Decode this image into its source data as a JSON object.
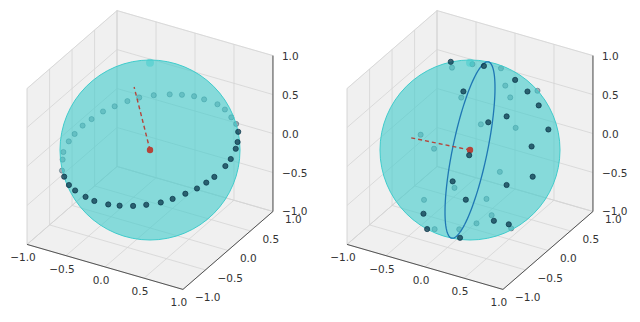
{
  "chart_data": [
    {
      "type": "scatter3d",
      "xlim": [
        -1,
        1
      ],
      "ylim": [
        -1,
        1
      ],
      "zlim": [
        -1,
        1
      ],
      "xticks": [
        {
          "value": -1,
          "label": "−1.0"
        },
        {
          "value": -0.5,
          "label": "−0.5"
        },
        {
          "value": 0,
          "label": "0.0"
        },
        {
          "value": 0.5,
          "label": "0.5"
        },
        {
          "value": 1,
          "label": "1.0"
        }
      ],
      "yticks": [
        {
          "value": -1,
          "label": "−1.0"
        },
        {
          "value": -0.5,
          "label": "−0.5"
        },
        {
          "value": 0,
          "label": "0.0"
        },
        {
          "value": 0.5,
          "label": "0.5"
        },
        {
          "value": 1,
          "label": "1.0"
        }
      ],
      "zticks": [
        {
          "value": -1,
          "label": "−1.0"
        },
        {
          "value": -0.5,
          "label": "−0.5"
        },
        {
          "value": 0,
          "label": "0.0"
        },
        {
          "value": 0.5,
          "label": "0.5"
        },
        {
          "value": 1,
          "label": "1.0"
        }
      ],
      "grid": true,
      "sphere": {
        "radius": 1,
        "color": "#40cccc"
      },
      "points": {
        "color": "#0d3b4f",
        "marker": "circle",
        "x": [
          0.88,
          0.93,
          0.97,
          0.99,
          0.99,
          0.95,
          0.91,
          0.82,
          0.73,
          0.61,
          0.47,
          0.34,
          0.14,
          0.0,
          -0.15,
          -0.29,
          -0.46,
          -0.6,
          -0.7,
          -0.8,
          -0.88,
          -0.94,
          -0.98,
          -0.99,
          -0.99,
          -0.95,
          -0.89,
          -0.8,
          -0.72,
          -0.59,
          -0.47,
          -0.29,
          -0.16,
          0.03,
          0.17,
          0.32,
          0.46,
          0.6,
          0.7,
          0.8
        ],
        "y": [
          -0.48,
          -0.36,
          -0.25,
          -0.04,
          0.08,
          0.26,
          0.37,
          0.54,
          0.65,
          0.75,
          0.85,
          0.91,
          0.96,
          0.98,
          0.97,
          0.94,
          0.88,
          0.8,
          0.71,
          0.6,
          0.48,
          0.33,
          0.2,
          0.04,
          -0.09,
          -0.28,
          -0.4,
          -0.57,
          -0.66,
          -0.78,
          -0.85,
          -0.93,
          -0.96,
          -0.98,
          -0.97,
          -0.93,
          -0.88,
          -0.8,
          -0.71,
          -0.6
        ],
        "z": [
          0,
          0.03,
          0.06,
          0.1,
          0.13,
          0.16,
          0.18,
          0.2,
          0.22,
          0.22,
          0.23,
          0.23,
          0.21,
          0.2,
          0.18,
          0.16,
          0.13,
          0.1,
          0.07,
          0.03,
          0,
          -0.04,
          -0.07,
          -0.1,
          -0.13,
          -0.16,
          -0.18,
          -0.21,
          -0.22,
          -0.23,
          -0.23,
          -0.22,
          -0.22,
          -0.2,
          -0.18,
          -0.16,
          -0.13,
          -0.1,
          -0.07,
          -0.03
        ]
      },
      "vector": {
        "color": "#b5443a",
        "line_style": "dashed",
        "marker": "circle",
        "x": [
          0,
          -0.1
        ],
        "y": [
          0,
          -0.18
        ],
        "z": [
          0,
          0.87
        ]
      }
    },
    {
      "type": "scatter3d",
      "xlim": [
        -1,
        1
      ],
      "ylim": [
        -1,
        1
      ],
      "zlim": [
        -1,
        1
      ],
      "xticks": [
        {
          "value": -1,
          "label": "−1.0"
        },
        {
          "value": -0.5,
          "label": "−0.5"
        },
        {
          "value": 0,
          "label": "0.0"
        },
        {
          "value": 0.5,
          "label": "0.5"
        },
        {
          "value": 1,
          "label": "1.0"
        }
      ],
      "yticks": [
        {
          "value": -1,
          "label": "−1.0"
        },
        {
          "value": -0.5,
          "label": "−0.5"
        },
        {
          "value": 0,
          "label": "0.0"
        },
        {
          "value": 0.5,
          "label": "0.5"
        },
        {
          "value": 1,
          "label": "1.0"
        }
      ],
      "zticks": [
        {
          "value": -1,
          "label": "−1.0"
        },
        {
          "value": -0.5,
          "label": "−0.5"
        },
        {
          "value": 0,
          "label": "0.0"
        },
        {
          "value": 0.5,
          "label": "0.5"
        },
        {
          "value": 1,
          "label": "1.0"
        }
      ],
      "grid": true,
      "sphere": {
        "radius": 1,
        "color": "#40cccc"
      },
      "points": {
        "color": "#0d3b4f",
        "marker": "circle",
        "x": [
          0.81,
          0.44,
          0.9,
          0.62,
          0.1,
          0.57,
          0.04,
          0.45,
          -0.03,
          -0.56,
          -0.05,
          -0.58,
          -0.38,
          -0.87,
          -0.05,
          -0.43,
          -0.59,
          0.02,
          -0.24,
          0.54,
          0.23,
          -0.06,
          0.67,
          0.46,
          0.96,
          0.5,
          0.89,
          0.4,
          -0.42,
          -0.09,
          0.02,
          -0.75,
          -0.06,
          -0.08,
          -0.14,
          0.74,
          0.32,
          0.72,
          -0.35,
          0.11
        ],
        "y": [
          -0.59,
          -0.78,
          -0.19,
          -0.26,
          -0.32,
          0.29,
          0.24,
          0.72,
          0.74,
          0.57,
          0.98,
          0.81,
          0.9,
          0.41,
          0.75,
          0.4,
          0.0,
          0.11,
          -0.37,
          -0.02,
          -0.62,
          -0.93,
          -0.63,
          -0.89,
          -0.27,
          -0.46,
          0.2,
          0.31,
          0.3,
          0.94,
          0.98,
          0.5,
          0.47,
          -0.1,
          -0.71,
          -0.42,
          -0.94,
          0.28,
          0.66,
          0.29
        ],
        "z": [
          0.08,
          0.45,
          0.4,
          0.74,
          0.94,
          0.77,
          0.97,
          0.53,
          0.67,
          0.61,
          0.17,
          0.1,
          -0.23,
          -0.26,
          -0.67,
          -0.81,
          -0.81,
          -0.99,
          -0.9,
          -0.84,
          -0.75,
          -0.37,
          -0.4,
          -0.06,
          0.07,
          0.73,
          0.42,
          0.86,
          0.86,
          0.33,
          -0.2,
          -0.45,
          -0.88,
          -0.99,
          -0.7,
          -0.53,
          0.16,
          0.64,
          0.67,
          -0.95
        ]
      },
      "vector": {
        "color": "#b5443a",
        "line_style": "dashed",
        "marker": "circle",
        "x": [
          0,
          -0.56
        ],
        "y": [
          0,
          -0.38
        ],
        "z": [
          0,
          0.19
        ]
      },
      "plane": {
        "normal": [
          -0.8,
          -0.54,
          0.27
        ],
        "color": "#1f77b4"
      }
    }
  ]
}
